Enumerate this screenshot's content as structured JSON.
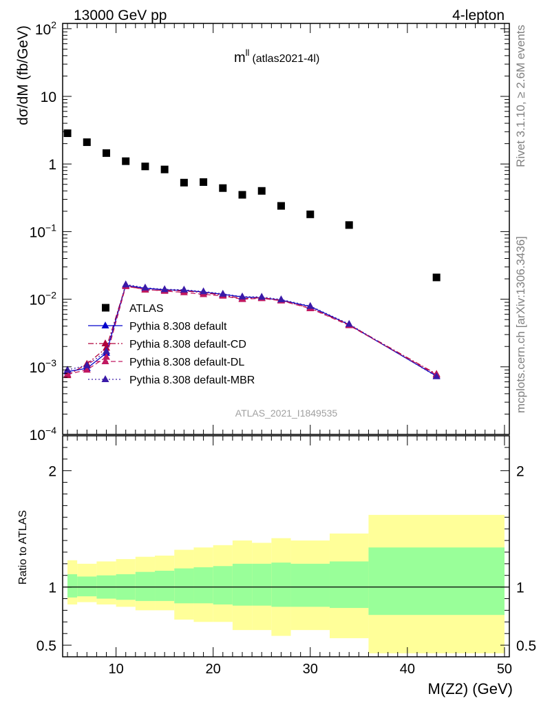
{
  "header": {
    "left": "13000 GeV pp",
    "right": "4-lepton"
  },
  "plot_title": {
    "main": "m",
    "superscript": "ll",
    "sub": "(atlas2021-4l)"
  },
  "side_labels": {
    "rivet": "Rivet 3.1.10, ≥ 2.6M events",
    "mcplots": "mcplots.cern.ch [arXiv:1306.3436]"
  },
  "watermark": "ATLAS_2021_I1849535",
  "colors": {
    "atlas": "#000000",
    "default": "#0000cc",
    "cd": "#b0003a",
    "dl": "#c01860",
    "mbr": "#3a1aa8",
    "band_inner": "#99ff99",
    "band_outer": "#ffff99"
  },
  "chart_data": [
    {
      "type": "scatter",
      "panel": "main",
      "ylabel": "dσ/dM (fb/GeV)",
      "yscale": "log",
      "ylim": [
        0.0001,
        120
      ],
      "xlim": [
        4.5,
        50.5
      ],
      "y_tick_labels": [
        {
          "base": "10",
          "exp": "2"
        },
        {
          "base": "10",
          "exp": ""
        },
        {
          "base": "1",
          "exp": ""
        },
        {
          "base": "10",
          "exp": "−1"
        },
        {
          "base": "10",
          "exp": "−2"
        },
        {
          "base": "10",
          "exp": "−3"
        },
        {
          "base": "10",
          "exp": "−4"
        }
      ],
      "legend": [
        {
          "label": "ATLAS",
          "style": "square"
        },
        {
          "label": "Pythia 8.308 default",
          "style": "solid"
        },
        {
          "label": "Pythia 8.308 default-CD",
          "style": "dashdot"
        },
        {
          "label": "Pythia 8.308 default-DL",
          "style": "dashed"
        },
        {
          "label": "Pythia 8.308 default-MBR",
          "style": "dotted"
        }
      ],
      "series": [
        {
          "name": "ATLAS",
          "x": [
            5,
            7,
            9,
            11,
            13,
            15,
            17,
            19,
            21,
            23,
            25,
            27,
            30,
            34,
            43
          ],
          "y": [
            2.85,
            2.1,
            1.45,
            1.1,
            0.92,
            0.83,
            0.53,
            0.54,
            0.44,
            0.35,
            0.4,
            0.24,
            0.18,
            0.125,
            0.021
          ]
        },
        {
          "name": "Pythia 8.308 default",
          "x": [
            5,
            7,
            9,
            11,
            13,
            15,
            17,
            19,
            21,
            23,
            25,
            27,
            30,
            34,
            43
          ],
          "y": [
            0.00085,
            0.00095,
            0.0016,
            0.016,
            0.0145,
            0.0138,
            0.0135,
            0.0128,
            0.0118,
            0.0108,
            0.0105,
            0.0097,
            0.0078,
            0.0042,
            0.00073
          ]
        },
        {
          "name": "Pythia 8.308 default-CD",
          "x": [
            5,
            7,
            9,
            11,
            13,
            15,
            17,
            19,
            21,
            23,
            25,
            27,
            30,
            34,
            43
          ],
          "y": [
            0.00075,
            0.0011,
            0.0019,
            0.016,
            0.0138,
            0.0135,
            0.0133,
            0.0125,
            0.0115,
            0.0102,
            0.0105,
            0.0096,
            0.0074,
            0.0042,
            0.00078
          ]
        },
        {
          "name": "Pythia 8.308 default-DL",
          "x": [
            5,
            7,
            9,
            11,
            13,
            15,
            17,
            19,
            21,
            23,
            25,
            27,
            30,
            34,
            43
          ],
          "y": [
            0.00078,
            0.0009,
            0.0014,
            0.0155,
            0.014,
            0.0132,
            0.0126,
            0.0118,
            0.0112,
            0.01,
            0.0103,
            0.0095,
            0.0073,
            0.0041,
            0.00076
          ]
        },
        {
          "name": "Pythia 8.308 default-MBR",
          "x": [
            5,
            7,
            9,
            11,
            13,
            15,
            17,
            19,
            21,
            23,
            25,
            27,
            30,
            34,
            43
          ],
          "y": [
            0.0009,
            0.00105,
            0.0017,
            0.0165,
            0.0148,
            0.014,
            0.0138,
            0.013,
            0.012,
            0.0109,
            0.0108,
            0.0099,
            0.0079,
            0.0043,
            0.00072
          ]
        }
      ]
    },
    {
      "type": "area",
      "panel": "ratio",
      "xlabel": "M(Z2) (GeV)",
      "ylabel": "Ratio to ATLAS",
      "ylim": [
        0.4,
        2.3
      ],
      "xlim": [
        4.5,
        50.5
      ],
      "x_ticks": [
        10,
        20,
        30,
        40,
        50
      ],
      "y_ticks": [
        0.5,
        1,
        2
      ],
      "reference_line": 1,
      "bins": [
        {
          "x": [
            5,
            6
          ],
          "inner": [
            0.91,
            1.11
          ],
          "outer": [
            0.85,
            1.23
          ]
        },
        {
          "x": [
            6,
            8
          ],
          "inner": [
            0.92,
            1.09
          ],
          "outer": [
            0.87,
            1.2
          ]
        },
        {
          "x": [
            8,
            10
          ],
          "inner": [
            0.9,
            1.1
          ],
          "outer": [
            0.85,
            1.22
          ]
        },
        {
          "x": [
            10,
            12
          ],
          "inner": [
            0.89,
            1.11
          ],
          "outer": [
            0.83,
            1.24
          ]
        },
        {
          "x": [
            12,
            14
          ],
          "inner": [
            0.88,
            1.13
          ],
          "outer": [
            0.8,
            1.26
          ]
        },
        {
          "x": [
            14,
            16
          ],
          "inner": [
            0.88,
            1.14
          ],
          "outer": [
            0.8,
            1.27
          ]
        },
        {
          "x": [
            16,
            18
          ],
          "inner": [
            0.86,
            1.16
          ],
          "outer": [
            0.72,
            1.32
          ]
        },
        {
          "x": [
            18,
            20
          ],
          "inner": [
            0.86,
            1.17
          ],
          "outer": [
            0.7,
            1.34
          ]
        },
        {
          "x": [
            20,
            22
          ],
          "inner": [
            0.85,
            1.18
          ],
          "outer": [
            0.7,
            1.36
          ]
        },
        {
          "x": [
            22,
            24
          ],
          "inner": [
            0.84,
            1.2
          ],
          "outer": [
            0.63,
            1.4
          ]
        },
        {
          "x": [
            24,
            26
          ],
          "inner": [
            0.84,
            1.2
          ],
          "outer": [
            0.63,
            1.38
          ]
        },
        {
          "x": [
            26,
            28
          ],
          "inner": [
            0.83,
            1.21
          ],
          "outer": [
            0.58,
            1.42
          ]
        },
        {
          "x": [
            28,
            32
          ],
          "inner": [
            0.83,
            1.2
          ],
          "outer": [
            0.63,
            1.4
          ]
        },
        {
          "x": [
            32,
            36
          ],
          "inner": [
            0.82,
            1.22
          ],
          "outer": [
            0.56,
            1.46
          ]
        },
        {
          "x": [
            36,
            50
          ],
          "inner": [
            0.76,
            1.34
          ],
          "outer": [
            0.43,
            1.62
          ]
        }
      ]
    }
  ]
}
